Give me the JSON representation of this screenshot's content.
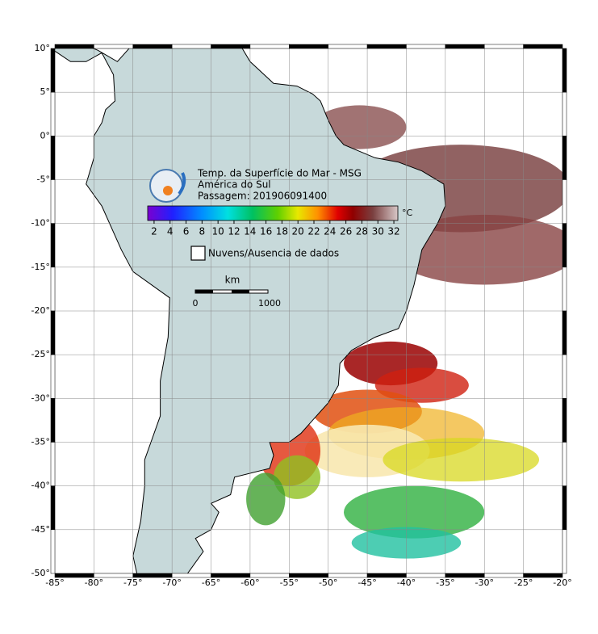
{
  "map": {
    "title": "Temp. da Superfície do Mar - MSG",
    "region": "América do Sul",
    "pass": "Passagem: 201906091400",
    "xlim": [
      -85,
      -20
    ],
    "ylim": [
      -50,
      10
    ],
    "xticks": [
      {
        "value": -85,
        "label": "-85°"
      },
      {
        "value": -80,
        "label": "-80°"
      },
      {
        "value": -75,
        "label": "-75°"
      },
      {
        "value": -70,
        "label": "-70°"
      },
      {
        "value": -65,
        "label": "-65°"
      },
      {
        "value": -60,
        "label": "-60°"
      },
      {
        "value": -55,
        "label": "-55°"
      },
      {
        "value": -50,
        "label": "-50°"
      },
      {
        "value": -45,
        "label": "-45°"
      },
      {
        "value": -40,
        "label": "-40°"
      },
      {
        "value": -35,
        "label": "-35°"
      },
      {
        "value": -30,
        "label": "-30°"
      },
      {
        "value": -25,
        "label": "-25°"
      },
      {
        "value": -20,
        "label": "-20°"
      }
    ],
    "yticks": [
      {
        "value": 10,
        "label": "10°"
      },
      {
        "value": 5,
        "label": "5°"
      },
      {
        "value": 0,
        "label": "0°"
      },
      {
        "value": -5,
        "label": "-5°"
      },
      {
        "value": -10,
        "label": "-10°"
      },
      {
        "value": -15,
        "label": "-15°"
      },
      {
        "value": -20,
        "label": "-20°"
      },
      {
        "value": -25,
        "label": "-25°"
      },
      {
        "value": -30,
        "label": "-30°"
      },
      {
        "value": -35,
        "label": "-35°"
      },
      {
        "value": -40,
        "label": "-40°"
      },
      {
        "value": -45,
        "label": "-45°"
      },
      {
        "value": -50,
        "label": "-50°"
      }
    ],
    "colorbar": {
      "range": [
        1.2,
        32.5
      ],
      "ticks": [
        2,
        4,
        6,
        8,
        10,
        12,
        14,
        16,
        18,
        20,
        22,
        24,
        26,
        28,
        30,
        32
      ],
      "unit": "°C"
    },
    "legend": "Nuvens/Ausencia de dados",
    "scale": {
      "unit": "km",
      "start": 0,
      "end": 1000
    }
  }
}
